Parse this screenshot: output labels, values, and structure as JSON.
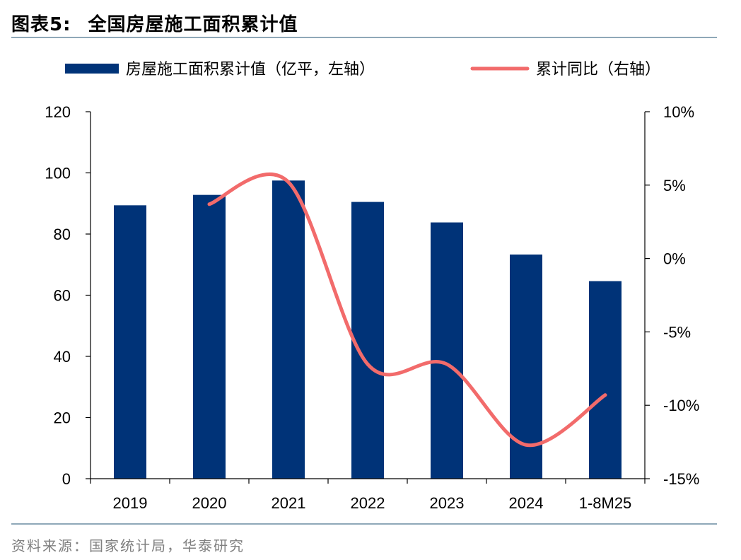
{
  "figure": {
    "title_prefix": "图表5:",
    "title": "全国房屋施工面积累计值",
    "source": "资料来源：国家统计局，华泰研究"
  },
  "chart_data": {
    "type": "bar",
    "categories": [
      "2019",
      "2020",
      "2021",
      "2022",
      "2023",
      "2024",
      "1-8M25"
    ],
    "series": [
      {
        "name": "房屋施工面积累计值（亿平，左轴）",
        "type": "bar",
        "axis": "left",
        "color": "#003378",
        "values": [
          89.4,
          92.8,
          97.5,
          90.5,
          83.8,
          73.3,
          64.6
        ]
      },
      {
        "name": "累计同比（右轴）",
        "type": "line",
        "axis": "right",
        "color": "#f26b6b",
        "values": [
          null,
          3.7,
          5.2,
          -7.2,
          -7.2,
          -12.7,
          -9.3
        ]
      }
    ],
    "y_left": {
      "min": 0,
      "max": 120,
      "ticks": [
        0,
        20,
        40,
        60,
        80,
        100,
        120
      ],
      "tick_labels": [
        "0",
        "20",
        "40",
        "60",
        "80",
        "100",
        "120"
      ]
    },
    "y_right": {
      "min": -15,
      "max": 10,
      "ticks": [
        -15,
        -10,
        -5,
        0,
        5,
        10
      ],
      "tick_labels": [
        "-15%",
        "-10%",
        "-5%",
        "0%",
        "5%",
        "10%"
      ]
    },
    "legend_position": "top",
    "grid": false
  }
}
